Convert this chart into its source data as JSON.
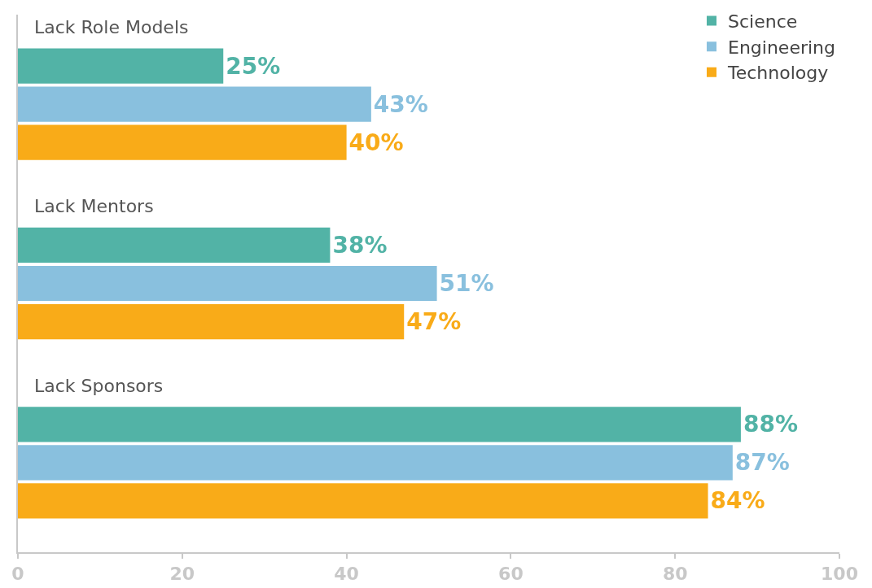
{
  "chart_data": {
    "type": "bar",
    "orientation": "horizontal",
    "categories": [
      "Lack Role Models",
      "Lack Mentors",
      "Lack Sponsors"
    ],
    "series": [
      {
        "name": "Science",
        "color": "#52b3a6",
        "values": [
          25,
          38,
          88
        ],
        "value_labels": [
          "25%",
          "38%",
          "88%"
        ]
      },
      {
        "name": "Engineering",
        "color": "#89c0de",
        "values": [
          43,
          51,
          87
        ],
        "value_labels": [
          "43%",
          "51%",
          "87%"
        ]
      },
      {
        "name": "Technology",
        "color": "#f9ab18",
        "values": [
          40,
          47,
          84
        ],
        "value_labels": [
          "40%",
          "47%",
          "84%"
        ]
      }
    ],
    "xlim": [
      0,
      100
    ],
    "xticks": [
      0,
      20,
      40,
      60,
      80,
      100
    ],
    "legend": "top right",
    "tick_labels": "x"
  }
}
